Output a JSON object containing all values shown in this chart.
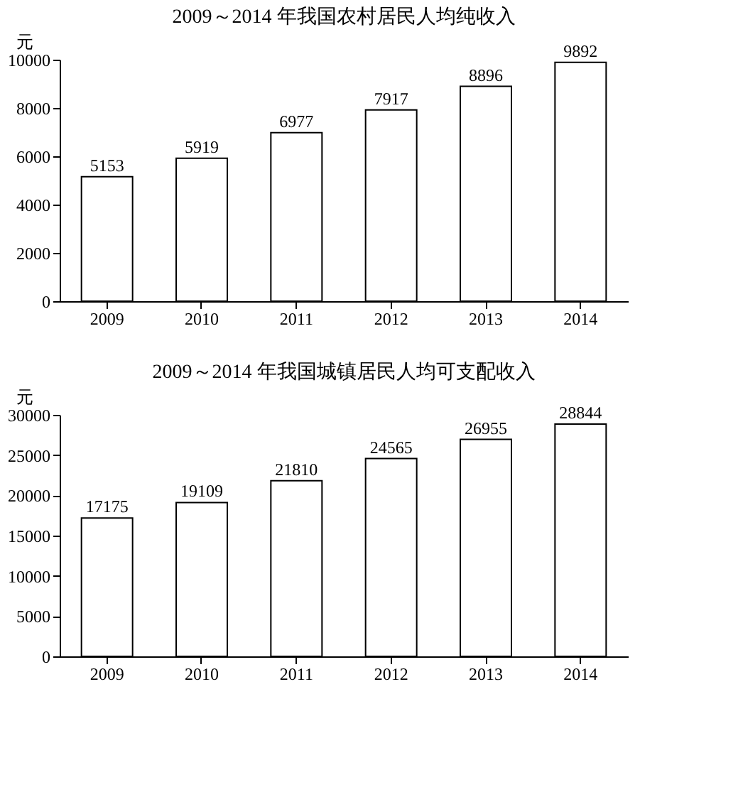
{
  "chart_data": [
    {
      "type": "bar",
      "title": "2009～2014 年我国农村居民人均纯收入",
      "ylabel": "元",
      "categories": [
        "2009",
        "2010",
        "2011",
        "2012",
        "2013",
        "2014"
      ],
      "values": [
        5153,
        5919,
        6977,
        7917,
        8896,
        9892
      ],
      "color": "#ffffff",
      "ylim": [
        0,
        10000
      ],
      "yticks": [
        0,
        2000,
        4000,
        6000,
        8000,
        10000
      ],
      "data_labels": true,
      "grid": false
    },
    {
      "type": "bar",
      "title": "2009～2014 年我国城镇居民人均可支配收入",
      "ylabel": "元",
      "categories": [
        "2009",
        "2010",
        "2011",
        "2012",
        "2013",
        "2014"
      ],
      "values": [
        17175,
        19109,
        21810,
        24565,
        26955,
        28844
      ],
      "color": "#ffffff",
      "ylim": [
        0,
        30000
      ],
      "yticks": [
        0,
        5000,
        10000,
        15000,
        20000,
        25000,
        30000
      ],
      "data_labels": true,
      "grid": false
    }
  ]
}
